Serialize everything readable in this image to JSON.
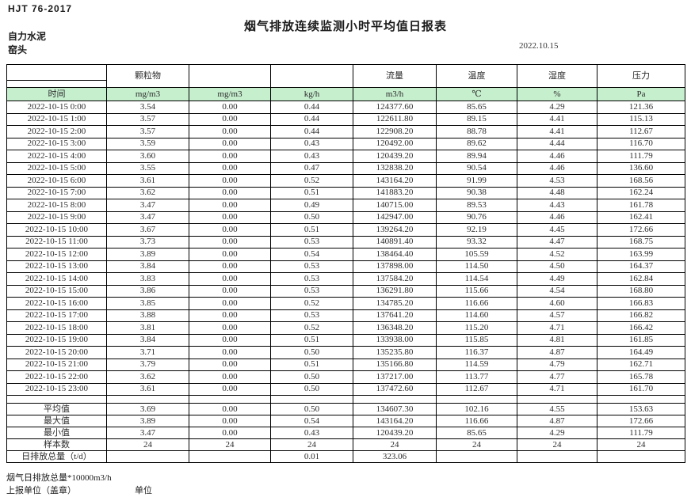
{
  "page": {
    "standard_code": "HJT  76-2017",
    "title": "烟气排放连续监测小时平均值日报表",
    "company": "自力水泥",
    "monitoring_point": "窑头",
    "date": "2022.10.15"
  },
  "colors": {
    "header_row_green": "#c6efce",
    "border": "#000000"
  },
  "table": {
    "group_headers": [
      "颗粒物",
      "",
      "",
      "流量",
      "温度",
      "湿度",
      "压力"
    ],
    "unit_row": [
      "时间",
      "mg/m3",
      "mg/m3",
      "kg/h",
      "m3/h",
      "℃",
      "%",
      "Pa"
    ],
    "rows": [
      [
        "2022-10-15 0:00",
        "3.54",
        "0.00",
        "0.44",
        "124377.60",
        "85.65",
        "4.29",
        "121.36"
      ],
      [
        "2022-10-15 1:00",
        "3.57",
        "0.00",
        "0.44",
        "122611.80",
        "89.15",
        "4.41",
        "115.13"
      ],
      [
        "2022-10-15 2:00",
        "3.57",
        "0.00",
        "0.44",
        "122908.20",
        "88.78",
        "4.41",
        "112.67"
      ],
      [
        "2022-10-15 3:00",
        "3.59",
        "0.00",
        "0.43",
        "120492.00",
        "89.62",
        "4.44",
        "116.70"
      ],
      [
        "2022-10-15 4:00",
        "3.60",
        "0.00",
        "0.43",
        "120439.20",
        "89.94",
        "4.46",
        "111.79"
      ],
      [
        "2022-10-15 5:00",
        "3.55",
        "0.00",
        "0.47",
        "132838.20",
        "90.54",
        "4.46",
        "136.60"
      ],
      [
        "2022-10-15 6:00",
        "3.61",
        "0.00",
        "0.52",
        "143164.20",
        "91.99",
        "4.53",
        "168.56"
      ],
      [
        "2022-10-15 7:00",
        "3.62",
        "0.00",
        "0.51",
        "141883.20",
        "90.38",
        "4.48",
        "162.24"
      ],
      [
        "2022-10-15 8:00",
        "3.47",
        "0.00",
        "0.49",
        "140715.00",
        "89.53",
        "4.43",
        "161.78"
      ],
      [
        "2022-10-15 9:00",
        "3.47",
        "0.00",
        "0.50",
        "142947.00",
        "90.76",
        "4.46",
        "162.41"
      ],
      [
        "2022-10-15 10:00",
        "3.67",
        "0.00",
        "0.51",
        "139264.20",
        "92.19",
        "4.45",
        "172.66"
      ],
      [
        "2022-10-15 11:00",
        "3.73",
        "0.00",
        "0.53",
        "140891.40",
        "93.32",
        "4.47",
        "168.75"
      ],
      [
        "2022-10-15 12:00",
        "3.89",
        "0.00",
        "0.54",
        "138464.40",
        "105.59",
        "4.52",
        "163.99"
      ],
      [
        "2022-10-15 13:00",
        "3.84",
        "0.00",
        "0.53",
        "137898.00",
        "114.50",
        "4.50",
        "164.37"
      ],
      [
        "2022-10-15 14:00",
        "3.83",
        "0.00",
        "0.53",
        "137584.20",
        "114.54",
        "4.49",
        "162.84"
      ],
      [
        "2022-10-15 15:00",
        "3.86",
        "0.00",
        "0.53",
        "136291.80",
        "115.66",
        "4.54",
        "168.80"
      ],
      [
        "2022-10-15 16:00",
        "3.85",
        "0.00",
        "0.52",
        "134785.20",
        "116.66",
        "4.60",
        "166.83"
      ],
      [
        "2022-10-15 17:00",
        "3.88",
        "0.00",
        "0.53",
        "137641.20",
        "114.60",
        "4.57",
        "166.82"
      ],
      [
        "2022-10-15 18:00",
        "3.81",
        "0.00",
        "0.52",
        "136348.20",
        "115.20",
        "4.71",
        "166.42"
      ],
      [
        "2022-10-15 19:00",
        "3.84",
        "0.00",
        "0.51",
        "133938.00",
        "115.85",
        "4.81",
        "161.85"
      ],
      [
        "2022-10-15 20:00",
        "3.71",
        "0.00",
        "0.50",
        "135235.80",
        "116.37",
        "4.87",
        "164.49"
      ],
      [
        "2022-10-15 21:00",
        "3.79",
        "0.00",
        "0.51",
        "135166.80",
        "114.59",
        "4.79",
        "162.71"
      ],
      [
        "2022-10-15 22:00",
        "3.62",
        "0.00",
        "0.50",
        "137217.00",
        "113.77",
        "4.77",
        "165.78"
      ],
      [
        "2022-10-15 23:00",
        "3.61",
        "0.00",
        "0.50",
        "137472.60",
        "112.67",
        "4.71",
        "161.70"
      ]
    ],
    "summary_rows": [
      [
        "平均值",
        "3.69",
        "0.00",
        "0.50",
        "134607.30",
        "102.16",
        "4.55",
        "153.63"
      ],
      [
        "最大值",
        "3.89",
        "0.00",
        "0.54",
        "143164.20",
        "116.66",
        "4.87",
        "172.66"
      ],
      [
        "最小值",
        "3.47",
        "0.00",
        "0.43",
        "120439.20",
        "85.65",
        "4.29",
        "111.79"
      ],
      [
        "样本数",
        "24",
        "24",
        "24",
        "24",
        "24",
        "24",
        "24"
      ],
      [
        "日排放总量（t/d）",
        "",
        "",
        "0.01",
        "323.06",
        "",
        "",
        ""
      ]
    ]
  },
  "footer": {
    "note": "烟气日排放总量*10000m3/h",
    "report_unit_label": "上报单位（盖章）",
    "unit_label": "单位"
  }
}
